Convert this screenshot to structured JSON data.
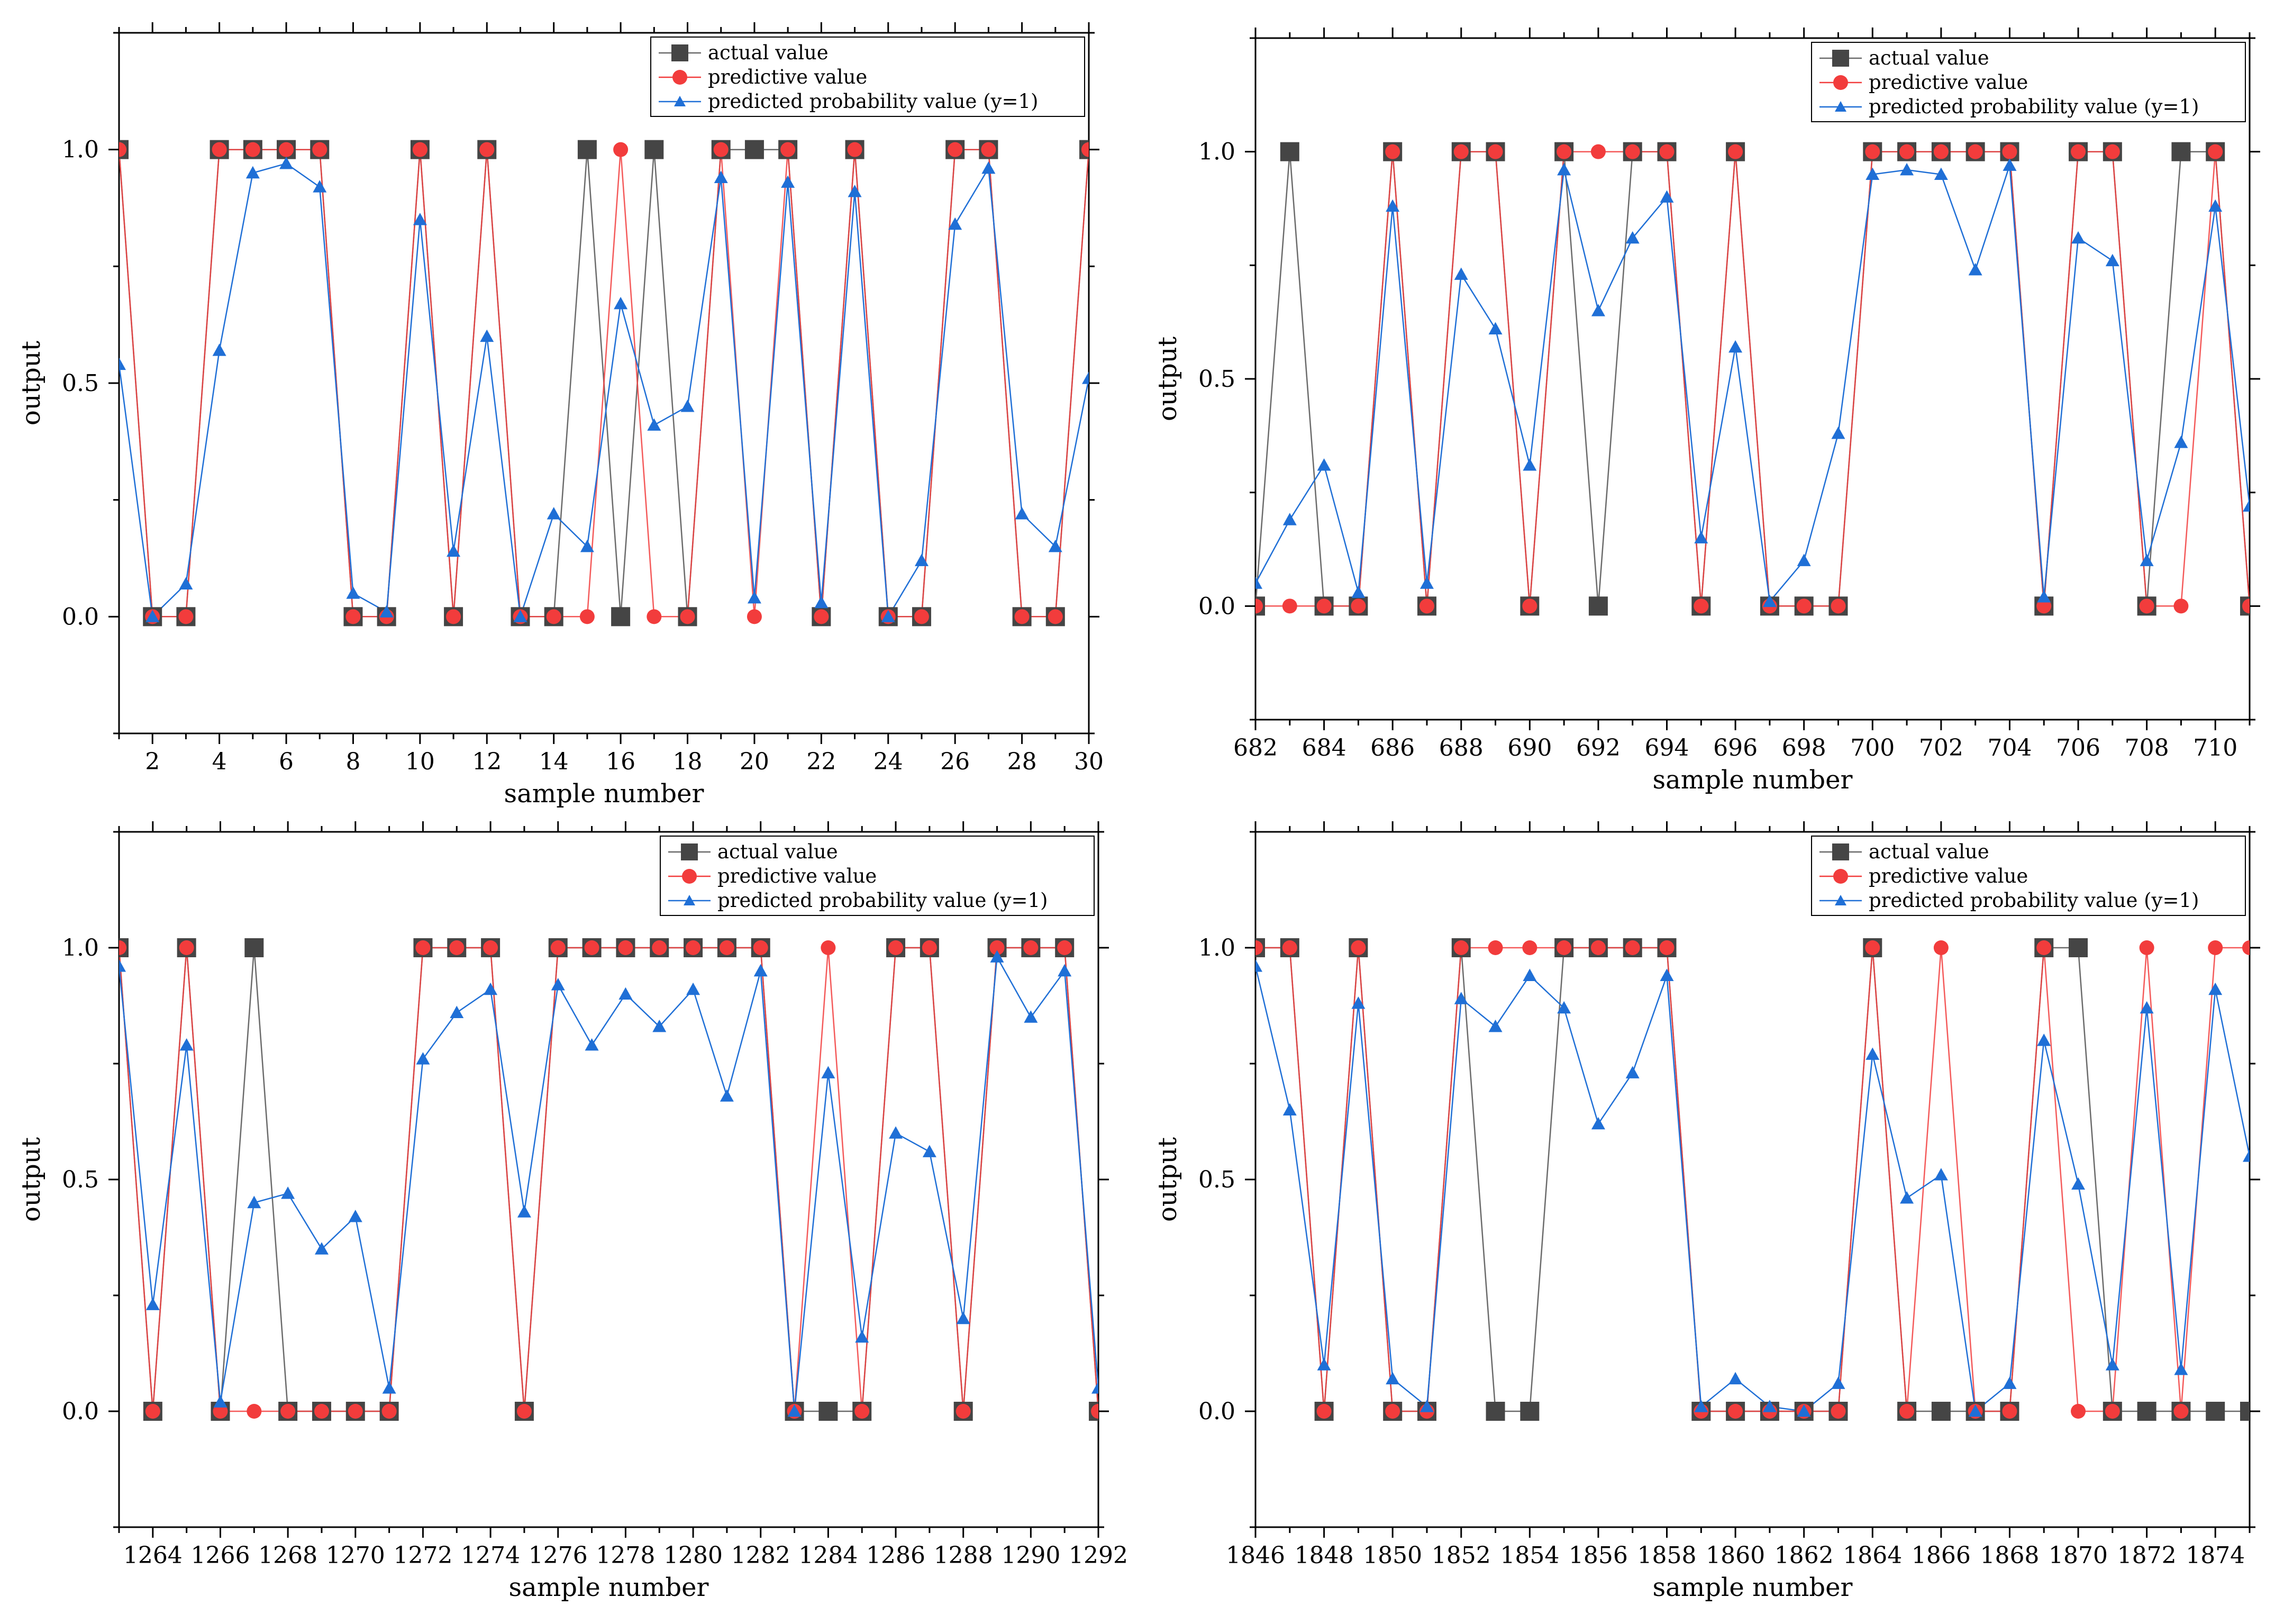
{
  "chart_data": [
    {
      "type": "line",
      "title": "",
      "xlabel": "sample number",
      "ylabel": "output",
      "xlim": [
        1,
        30
      ],
      "ylim": [
        -0.25,
        1.25
      ],
      "xticks": [
        "2",
        "4",
        "6",
        "8",
        "10",
        "12",
        "14",
        "16",
        "18",
        "20",
        "22",
        "24",
        "26",
        "28",
        "30"
      ],
      "yticks": [
        "0.0",
        "0.5",
        "1.0"
      ],
      "x": [
        1,
        2,
        3,
        4,
        5,
        6,
        7,
        8,
        9,
        10,
        11,
        12,
        13,
        14,
        15,
        16,
        17,
        18,
        19,
        20,
        21,
        22,
        23,
        24,
        25,
        26,
        27,
        28,
        29,
        30
      ],
      "series": [
        {
          "name": "actual value",
          "values": [
            1,
            0,
            0,
            1,
            1,
            1,
            1,
            0,
            0,
            1,
            0,
            1,
            0,
            0,
            1,
            0,
            1,
            0,
            1,
            1,
            1,
            0,
            1,
            0,
            0,
            1,
            1,
            0,
            0,
            1
          ]
        },
        {
          "name": "predictive value",
          "values": [
            1,
            0,
            0,
            1,
            1,
            1,
            1,
            0,
            0,
            1,
            0,
            1,
            0,
            0,
            0,
            1,
            0,
            0,
            1,
            0,
            1,
            0,
            1,
            0,
            0,
            1,
            1,
            0,
            0,
            1
          ]
        },
        {
          "name": "predicted probability value (y=1)",
          "values": [
            0.54,
            0.0,
            0.07,
            0.57,
            0.95,
            0.97,
            0.92,
            0.05,
            0.01,
            0.85,
            0.14,
            0.6,
            0.0,
            0.22,
            0.15,
            0.67,
            0.41,
            0.45,
            0.94,
            0.04,
            0.93,
            0.03,
            0.91,
            0.0,
            0.12,
            0.84,
            0.96,
            0.22,
            0.15,
            0.51
          ]
        }
      ],
      "legend_position": "top-right",
      "legend": [
        "actual value",
        "predictive value",
        "predicted probability value (y=1)"
      ]
    },
    {
      "type": "line",
      "title": "",
      "xlabel": "sample number",
      "ylabel": "output",
      "xlim": [
        682,
        711
      ],
      "ylim": [
        -0.25,
        1.25
      ],
      "xticks": [
        "682",
        "684",
        "686",
        "688",
        "690",
        "692",
        "694",
        "696",
        "698",
        "700",
        "702",
        "704",
        "706",
        "708",
        "710"
      ],
      "yticks": [
        "0.0",
        "0.5",
        "1.0"
      ],
      "x": [
        682,
        683,
        684,
        685,
        686,
        687,
        688,
        689,
        690,
        691,
        692,
        693,
        694,
        695,
        696,
        697,
        698,
        699,
        700,
        701,
        702,
        703,
        704,
        705,
        706,
        707,
        708,
        709,
        710,
        711
      ],
      "series": [
        {
          "name": "actual value",
          "values": [
            0,
            1,
            0,
            0,
            1,
            0,
            1,
            1,
            0,
            1,
            0,
            1,
            1,
            0,
            1,
            0,
            0,
            0,
            1,
            1,
            1,
            1,
            1,
            0,
            1,
            1,
            0,
            1,
            1,
            0
          ]
        },
        {
          "name": "predictive value",
          "values": [
            0,
            0,
            0,
            0,
            1,
            0,
            1,
            1,
            0,
            1,
            1,
            1,
            1,
            0,
            1,
            0,
            0,
            0,
            1,
            1,
            1,
            1,
            1,
            0,
            1,
            1,
            0,
            0,
            1,
            0
          ]
        },
        {
          "name": "predicted probability value (y=1)",
          "values": [
            0.05,
            0.19,
            0.31,
            0.03,
            0.88,
            0.05,
            0.73,
            0.61,
            0.31,
            0.96,
            0.65,
            0.81,
            0.9,
            0.15,
            0.57,
            0.01,
            0.1,
            0.38,
            0.95,
            0.96,
            0.95,
            0.74,
            0.97,
            0.02,
            0.81,
            0.76,
            0.1,
            0.36,
            0.88,
            0.22
          ]
        }
      ],
      "legend_position": "top-right",
      "legend": [
        "actual value",
        "predictive value",
        "predicted probability value (y=1)"
      ]
    },
    {
      "type": "line",
      "title": "",
      "xlabel": "sample number",
      "ylabel": "output",
      "xlim": [
        1263,
        1292
      ],
      "ylim": [
        -0.25,
        1.25
      ],
      "xticks": [
        "1264",
        "1266",
        "1268",
        "1270",
        "1272",
        "1274",
        "1276",
        "1278",
        "1280",
        "1282",
        "1284",
        "1286",
        "1288",
        "1290",
        "1292"
      ],
      "yticks": [
        "0.0",
        "0.5",
        "1.0"
      ],
      "x": [
        1263,
        1264,
        1265,
        1266,
        1267,
        1268,
        1269,
        1270,
        1271,
        1272,
        1273,
        1274,
        1275,
        1276,
        1277,
        1278,
        1279,
        1280,
        1281,
        1282,
        1283,
        1284,
        1285,
        1286,
        1287,
        1288,
        1289,
        1290,
        1291,
        1292
      ],
      "series": [
        {
          "name": "actual value",
          "values": [
            1,
            0,
            1,
            0,
            1,
            0,
            0,
            0,
            0,
            1,
            1,
            1,
            0,
            1,
            1,
            1,
            1,
            1,
            1,
            1,
            0,
            0,
            0,
            1,
            1,
            0,
            1,
            1,
            1,
            0
          ]
        },
        {
          "name": "predictive value",
          "values": [
            1,
            0,
            1,
            0,
            0,
            0,
            0,
            0,
            0,
            1,
            1,
            1,
            0,
            1,
            1,
            1,
            1,
            1,
            1,
            1,
            0,
            1,
            0,
            1,
            1,
            0,
            1,
            1,
            1,
            0
          ]
        },
        {
          "name": "predicted probability value (y=1)",
          "values": [
            0.96,
            0.23,
            0.79,
            0.02,
            0.45,
            0.47,
            0.35,
            0.42,
            0.05,
            0.76,
            0.86,
            0.91,
            0.43,
            0.92,
            0.79,
            0.9,
            0.83,
            0.91,
            0.68,
            0.95,
            0.0,
            0.73,
            0.16,
            0.6,
            0.56,
            0.2,
            0.98,
            0.85,
            0.95,
            0.05
          ]
        }
      ],
      "legend_position": "top-right",
      "legend": [
        "actual value",
        "predictive value",
        "predicted probability value (y=1)"
      ]
    },
    {
      "type": "line",
      "title": "",
      "xlabel": "sample number",
      "ylabel": "output",
      "xlim": [
        1846,
        1875
      ],
      "ylim": [
        -0.25,
        1.25
      ],
      "xticks": [
        "1846",
        "1848",
        "1850",
        "1852",
        "1854",
        "1856",
        "1858",
        "1860",
        "1862",
        "1864",
        "1866",
        "1868",
        "1870",
        "1872",
        "1874"
      ],
      "yticks": [
        "0.0",
        "0.5",
        "1.0"
      ],
      "x": [
        1846,
        1847,
        1848,
        1849,
        1850,
        1851,
        1852,
        1853,
        1854,
        1855,
        1856,
        1857,
        1858,
        1859,
        1860,
        1861,
        1862,
        1863,
        1864,
        1865,
        1866,
        1867,
        1868,
        1869,
        1870,
        1871,
        1872,
        1873,
        1874,
        1875
      ],
      "series": [
        {
          "name": "actual value",
          "values": [
            1,
            1,
            0,
            1,
            0,
            0,
            1,
            0,
            0,
            1,
            1,
            1,
            1,
            0,
            0,
            0,
            0,
            0,
            1,
            0,
            0,
            0,
            0,
            1,
            1,
            0,
            0,
            0,
            0,
            0
          ]
        },
        {
          "name": "predictive value",
          "values": [
            1,
            1,
            0,
            1,
            0,
            0,
            1,
            1,
            1,
            1,
            1,
            1,
            1,
            0,
            0,
            0,
            0,
            0,
            1,
            0,
            1,
            0,
            0,
            1,
            0,
            0,
            1,
            0,
            1,
            1
          ]
        },
        {
          "name": "predicted probability value (y=1)",
          "values": [
            0.96,
            0.65,
            0.1,
            0.88,
            0.07,
            0.01,
            0.89,
            0.83,
            0.94,
            0.87,
            0.62,
            0.73,
            0.94,
            0.01,
            0.07,
            0.01,
            0.0,
            0.06,
            0.77,
            0.46,
            0.51,
            0.0,
            0.06,
            0.8,
            0.49,
            0.1,
            0.87,
            0.09,
            0.91,
            0.55
          ]
        }
      ],
      "legend_position": "top-right",
      "legend": [
        "actual value",
        "predictive value",
        "predicted probability value (y=1)"
      ]
    }
  ]
}
